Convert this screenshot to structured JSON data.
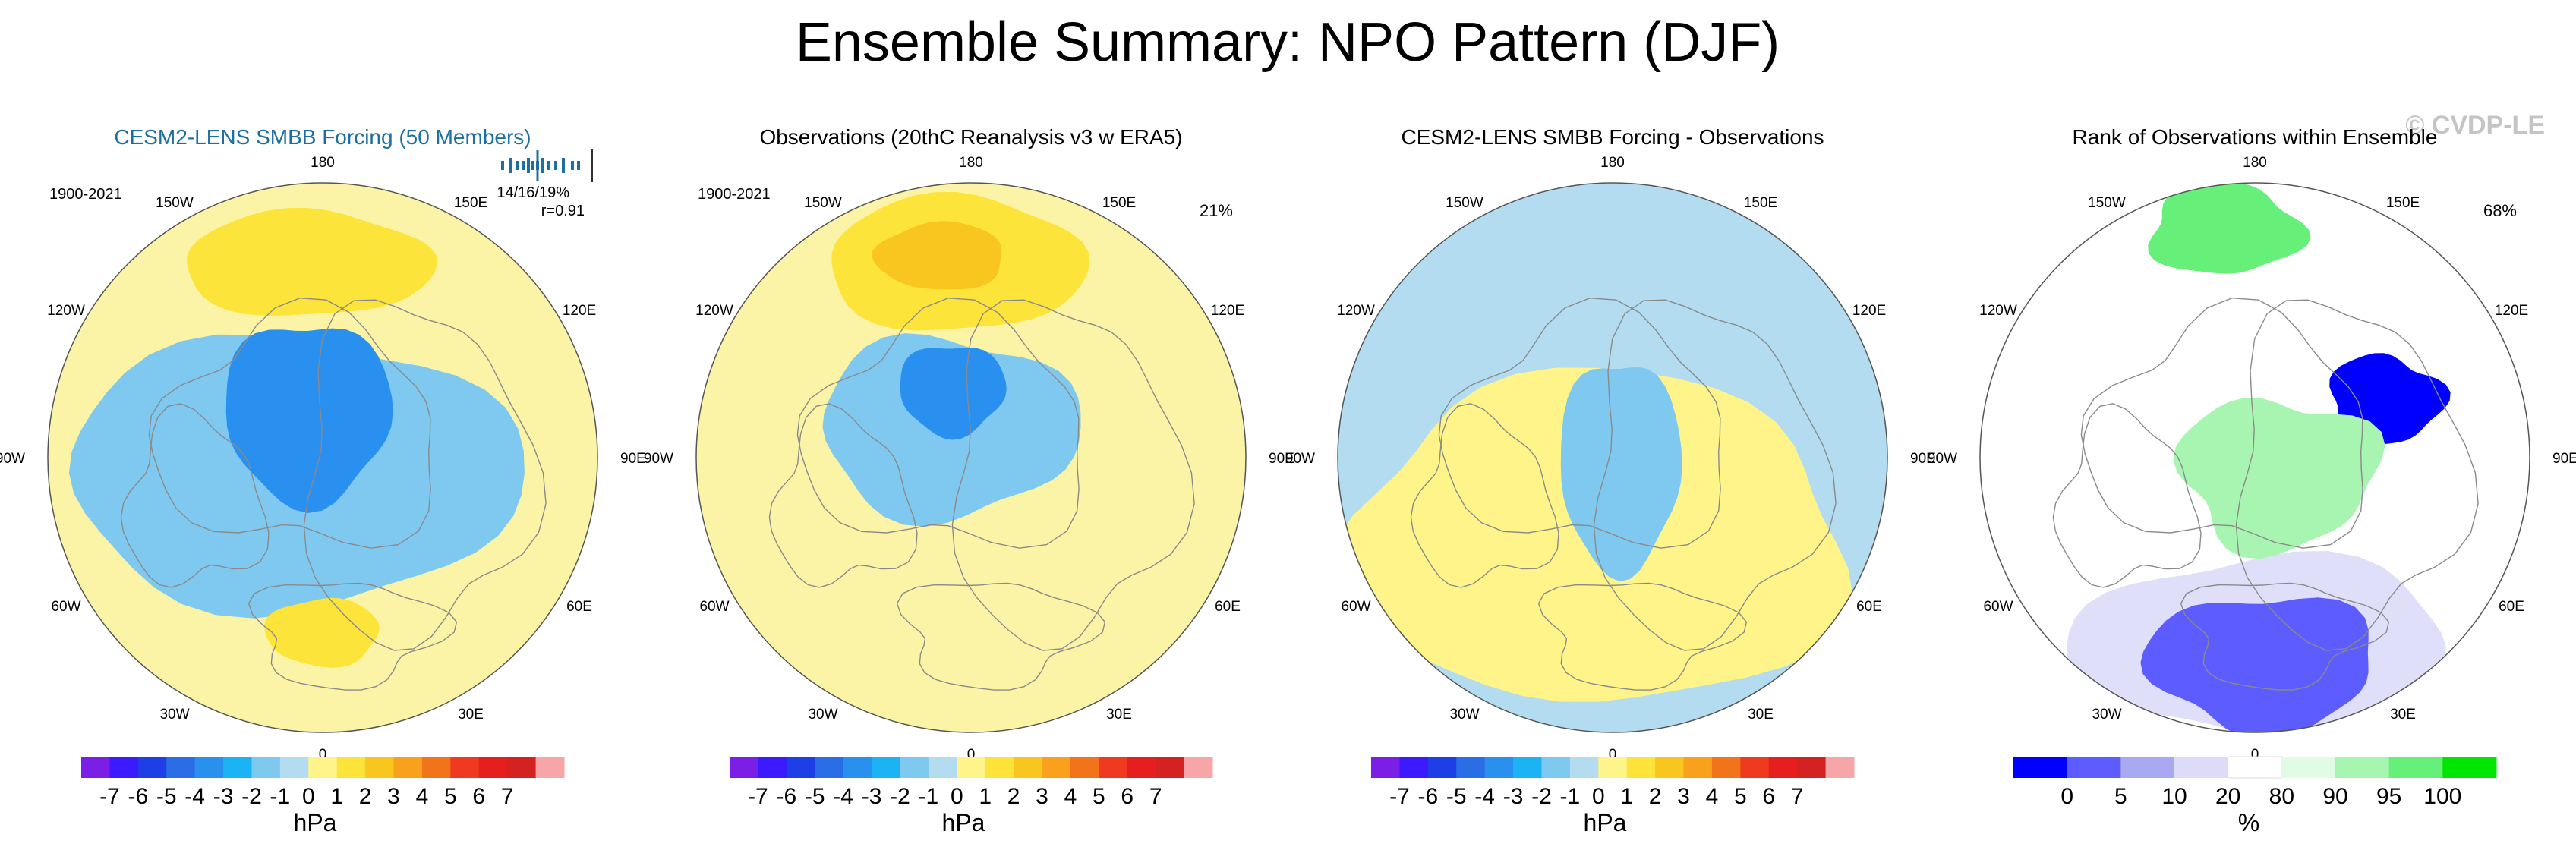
{
  "page": {
    "title": "Ensemble Summary: NPO Pattern (DJF)",
    "watermark": "© CVDP-LE"
  },
  "chart_data": [
    {
      "type": "heatmap",
      "projection": "north-polar-stereographic",
      "title": "CESM2-LENS SMBB Forcing (50 Members)",
      "title_color": "#1d6fa0",
      "period": "1900-2021",
      "percent": "",
      "stats_line1": "14/16/19%",
      "stats_line2": "r=0.91",
      "lon_labels": [
        "180",
        "150W",
        "150E",
        "120W",
        "120E",
        "90W",
        "90E",
        "60W",
        "60E",
        "30W",
        "30E",
        "0"
      ],
      "colorbar": "anomaly",
      "contours": [
        {
          "region": "north-pacific",
          "sign": "positive",
          "level": 1.2
        },
        {
          "region": "arctic-atlantic",
          "sign": "negative",
          "level": -1.5
        },
        {
          "region": "arctic-core",
          "sign": "negative",
          "level": -3.2
        },
        {
          "region": "europe",
          "sign": "positive",
          "level": 1.2
        }
      ]
    },
    {
      "type": "heatmap",
      "projection": "north-polar-stereographic",
      "title": "Observations (20thC Reanalysis v3 w ERA5)",
      "title_color": "#000000",
      "period": "1900-2021",
      "percent": "21%",
      "stats_line1": "",
      "stats_line2": "",
      "lon_labels": [
        "180",
        "150W",
        "150E",
        "120W",
        "120E",
        "90W",
        "90E",
        "60W",
        "60E",
        "30W",
        "30E",
        "0"
      ],
      "colorbar": "anomaly",
      "contours": [
        {
          "region": "north-pacific",
          "sign": "positive",
          "level": 1.5
        },
        {
          "region": "north-pacific-core",
          "sign": "positive",
          "level": 2.5
        },
        {
          "region": "arctic-atlantic",
          "sign": "negative",
          "level": -1.5
        },
        {
          "region": "arctic-core",
          "sign": "negative",
          "level": -3.0
        }
      ]
    },
    {
      "type": "heatmap",
      "projection": "north-polar-stereographic",
      "title": "CESM2-LENS SMBB Forcing - Observations",
      "title_color": "#000000",
      "period": "",
      "percent": "",
      "stats_line1": "",
      "stats_line2": "",
      "lon_labels": [
        "180",
        "150W",
        "150E",
        "120W",
        "120E",
        "90W",
        "90E",
        "60W",
        "60E",
        "30W",
        "30E",
        "0"
      ],
      "colorbar": "anomaly",
      "contours": [
        {
          "region": "hemisphere",
          "sign": "negative",
          "level": -0.5
        },
        {
          "region": "eurasia-atlantic",
          "sign": "positive",
          "level": 0.5
        },
        {
          "region": "arctic",
          "sign": "negative",
          "level": -1.5
        }
      ]
    },
    {
      "type": "heatmap",
      "projection": "north-polar-stereographic",
      "title": "Rank of Observations within Ensemble",
      "title_color": "#000000",
      "period": "",
      "percent": "68%",
      "stats_line1": "",
      "stats_line2": "",
      "lon_labels": [
        "180",
        "150W",
        "150E",
        "120W",
        "120E",
        "90W",
        "90E",
        "60W",
        "60E",
        "30W",
        "30E",
        "0"
      ],
      "colorbar": "rank",
      "contours": [
        {
          "region": "north-pacific",
          "rank": "95-100"
        },
        {
          "region": "siberia",
          "rank": "0-5"
        },
        {
          "region": "arctic-north-atlantic",
          "rank": "90-100"
        },
        {
          "region": "europe-atlantic",
          "rank": "0-10"
        }
      ]
    }
  ],
  "colorbars": {
    "anomaly": {
      "colors": [
        "#7b1fe6",
        "#3b1aff",
        "#1f3fe6",
        "#2a6ee6",
        "#2a90f0",
        "#1cb3f5",
        "#7fc8ef",
        "#b3dcf0",
        "#fff48a",
        "#fde43a",
        "#f9c51f",
        "#f9a01c",
        "#f2741a",
        "#ef3a1f",
        "#e71e1e",
        "#d42121",
        "#f6a6a6"
      ],
      "labels": [
        "-7",
        "-6",
        "-5",
        "-4",
        "-3",
        "-2",
        "-1",
        "0",
        "1",
        "2",
        "3",
        "4",
        "5",
        "6",
        "7"
      ],
      "units": "hPa"
    },
    "rank": {
      "colors": [
        "#0000ff",
        "#5c5cff",
        "#a9a9f3",
        "#dcdcf8",
        "#ffffff",
        "#e2fbe5",
        "#a8f5b2",
        "#66f07a",
        "#00e600"
      ],
      "labels": [
        "0",
        "5",
        "10",
        "20",
        "80",
        "90",
        "95",
        "100"
      ],
      "units": "%"
    }
  },
  "colors": {
    "ocean_neutral": "#fbf4a6",
    "coast": "#8a8a8a",
    "title_accent": "#1d6fa0",
    "watermark": "#c4c4c4"
  }
}
